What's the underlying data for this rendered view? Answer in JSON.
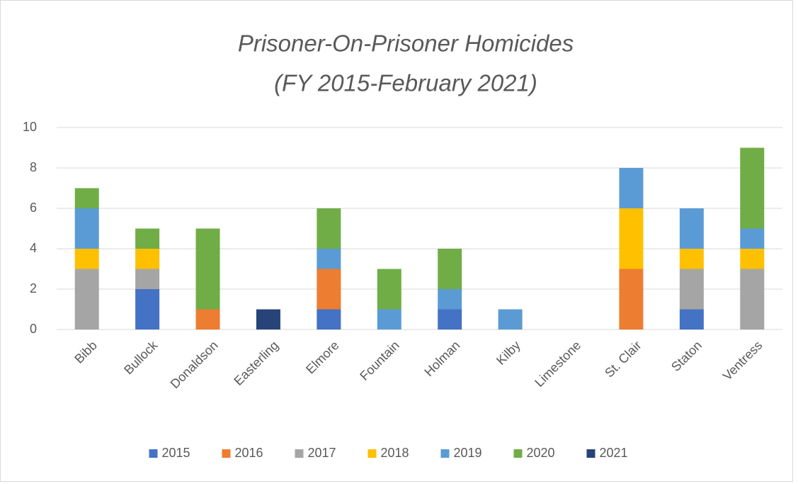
{
  "chart_data": {
    "type": "stacked_bar",
    "title": "Prisoner-On-Prisoner Homicides",
    "subtitle": "(FY 2015-February 2021)",
    "categories": [
      "Bibb",
      "Bullock",
      "Donaldson",
      "Easterling",
      "Elmore",
      "Fountain",
      "Holman",
      "Kilby",
      "Limestone",
      "St. Clair",
      "Staton",
      "Ventress"
    ],
    "series": [
      {
        "name": "2015",
        "color": "#4472c4",
        "values": [
          0,
          2,
          0,
          0,
          1,
          0,
          1,
          0,
          0,
          0,
          1,
          0
        ]
      },
      {
        "name": "2016",
        "color": "#ed7d31",
        "values": [
          0,
          0,
          1,
          0,
          2,
          0,
          0,
          0,
          0,
          3,
          0,
          0
        ]
      },
      {
        "name": "2017",
        "color": "#a5a5a5",
        "values": [
          3,
          1,
          0,
          0,
          0,
          0,
          0,
          0,
          0,
          0,
          2,
          3
        ]
      },
      {
        "name": "2018",
        "color": "#ffc000",
        "values": [
          1,
          1,
          0,
          0,
          0,
          0,
          0,
          0,
          0,
          3,
          1,
          1
        ]
      },
      {
        "name": "2019",
        "color": "#5b9bd5",
        "values": [
          2,
          0,
          0,
          0,
          1,
          1,
          1,
          1,
          0,
          2,
          2,
          1
        ]
      },
      {
        "name": "2020",
        "color": "#70ad47",
        "values": [
          1,
          1,
          4,
          0,
          2,
          2,
          2,
          0,
          0,
          0,
          0,
          4
        ]
      },
      {
        "name": "2021",
        "color": "#264478",
        "values": [
          0,
          0,
          0,
          1,
          0,
          0,
          0,
          0,
          0,
          0,
          0,
          0
        ]
      }
    ],
    "ylim": [
      0,
      10
    ],
    "yticks": [
      0,
      2,
      4,
      6,
      8,
      10
    ],
    "grid": true,
    "legend": "bottom"
  }
}
